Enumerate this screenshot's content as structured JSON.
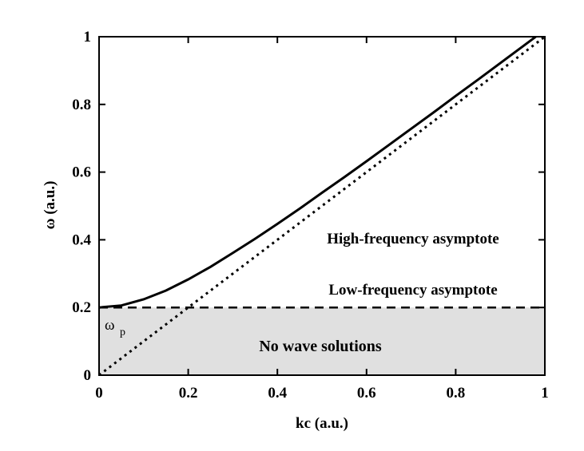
{
  "chart_data": {
    "type": "line",
    "title": "",
    "xlabel": "kc (a.u.)",
    "ylabel": "ω (a.u.)",
    "xlim": [
      0,
      1
    ],
    "ylim": [
      0,
      1
    ],
    "grid": false,
    "xticks": [
      0,
      0.2,
      0.4,
      0.6,
      0.8,
      1
    ],
    "yticks": [
      0,
      0.2,
      0.4,
      0.6,
      0.8,
      1
    ],
    "xtick_labels": [
      "0",
      "0.2",
      "0.4",
      "0.6",
      "0.8",
      "1"
    ],
    "ytick_labels": [
      "0",
      "0.2",
      "0.4",
      "0.6",
      "0.8",
      "1"
    ],
    "plasma_frequency": 0.2,
    "series": [
      {
        "style": "solid",
        "color": "#000000",
        "x": [
          0,
          0.05,
          0.1,
          0.15,
          0.2,
          0.25,
          0.3,
          0.35,
          0.4,
          0.45,
          0.5,
          0.55,
          0.6,
          0.65,
          0.7,
          0.75,
          0.8,
          0.85,
          0.9,
          0.95,
          1.0
        ],
        "y": [
          0.2,
          0.206,
          0.224,
          0.25,
          0.283,
          0.32,
          0.361,
          0.403,
          0.447,
          0.492,
          0.539,
          0.585,
          0.632,
          0.68,
          0.728,
          0.776,
          0.825,
          0.873,
          0.922,
          0.971,
          1.02
        ]
      },
      {
        "style": "dotted",
        "color": "#000000",
        "x": [
          0,
          1
        ],
        "y": [
          0,
          1
        ]
      },
      {
        "style": "dashed",
        "color": "#000000",
        "x": [
          0,
          1
        ],
        "y": [
          0.2,
          0.2
        ]
      }
    ],
    "shaded_region": {
      "y_from": 0,
      "y_to": 0.2,
      "color": "#e0e0e0"
    },
    "annotations": {
      "high_freq": "High-frequency asymptote",
      "low_freq": "Low-frequency asymptote",
      "no_wave": "No wave solutions",
      "omega_p_symbol": "ω",
      "omega_p_sub": "p"
    }
  }
}
